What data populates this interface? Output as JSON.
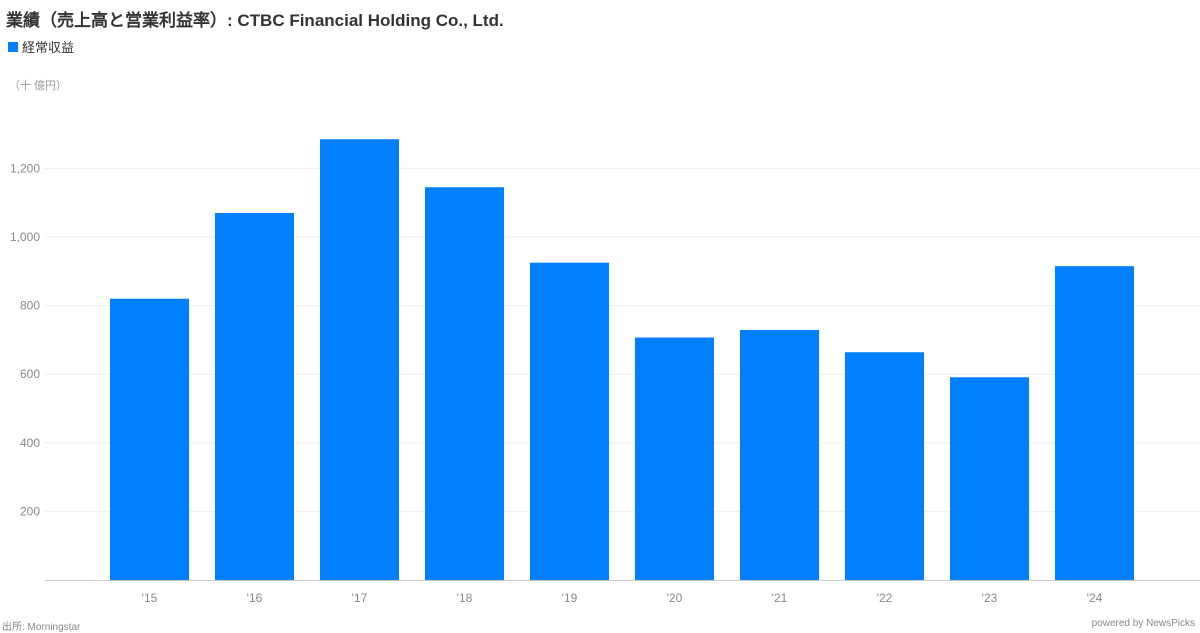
{
  "title": "業績（売上高と営業利益率）: CTBC Financial Holding Co., Ltd.",
  "unit_label": "（十 億円）",
  "footer": {
    "source": "出所: Morningstar",
    "powered_by": "powered by NewsPicks"
  },
  "colors": {
    "bar": "#0080ff",
    "grid": "#eeeeee",
    "axis": "#cccccc",
    "tick_text": "#888888"
  },
  "chart_data": {
    "type": "bar",
    "title": "業績（売上高と営業利益率）: CTBC Financial Holding Co., Ltd.",
    "categories": [
      "'15",
      "'16",
      "'17",
      "'18",
      "'19",
      "'20",
      "'21",
      "'22",
      "'23",
      "'24"
    ],
    "series": [
      {
        "name": "経常収益",
        "values": [
          820,
          1070,
          1285,
          1145,
          925,
          707,
          729,
          664,
          591,
          915
        ]
      }
    ],
    "yticks": [
      200,
      400,
      600,
      800,
      1000,
      1200
    ],
    "ytick_labels": [
      "200",
      "400",
      "600",
      "800",
      "1,000",
      "1,200"
    ],
    "ylim": [
      0,
      1400
    ],
    "grid": true,
    "legend_position": "top-left"
  }
}
